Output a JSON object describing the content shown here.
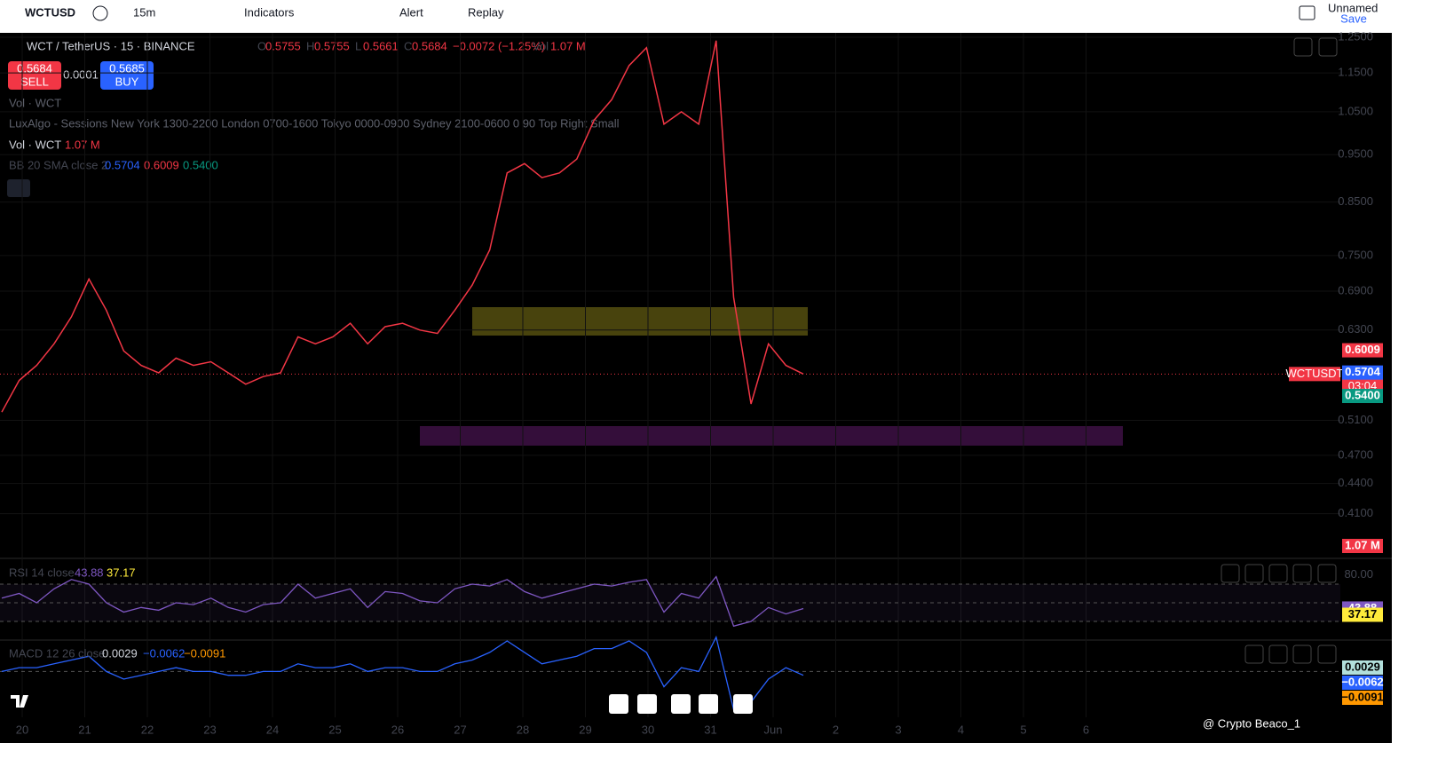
{
  "toolbar": {
    "symbol": "WCTUSD",
    "interval": "15m",
    "indicators": "Indicators",
    "alert": "Alert",
    "replay": "Replay",
    "layout_name": "Unnamed",
    "save": "Save"
  },
  "legend": {
    "pair": "WCT / TetherUS · 15 · BINANCE",
    "ohlc": [
      {
        "key": "O",
        "value": "0.5755"
      },
      {
        "key": "H",
        "value": "0.5755"
      },
      {
        "key": "L",
        "value": "0.5661"
      },
      {
        "key": "C",
        "value": "0.5684"
      }
    ],
    "change": "−0.0072 (−1.25%)",
    "volume_key": "Vol",
    "volume": "1.07 M",
    "sell_price": "0.5684",
    "sell": "SELL",
    "spread": "0.0001",
    "buy_price": "0.5685",
    "buy": "BUY",
    "vol_hidden": "Vol · WCT",
    "luxalgo": "LuxAlgo - Sessions New York 1300-2200 London 0700-1600 Tokyo 0000-0900 Sydney 2100-0600 0 90 Top Right Small",
    "vol_name": "Vol · WCT",
    "vol_value": "1.07 M",
    "bb_name": "BB 20 SMA close 2",
    "bb_values": [
      "0.5704",
      "0.6009",
      "0.5400"
    ],
    "rsi_name": "RSI 14 close",
    "rsi_values": [
      "43.88",
      "37.17"
    ],
    "macd_name": "MACD 12 26 close",
    "macd_values": [
      "0.0029",
      "−0.0062",
      "−0.0091"
    ]
  },
  "price_chart": {
    "type": "line",
    "log_scale": true,
    "color": "#f23645",
    "grid": true,
    "ylim": [
      0.37,
      1.263
    ],
    "yticks": [
      {
        "value": 1.25,
        "label": "1.2500"
      },
      {
        "value": 1.15,
        "label": "1.1500"
      },
      {
        "value": 1.05,
        "label": "1.0500"
      },
      {
        "value": 0.95,
        "label": "0.9500"
      },
      {
        "value": 0.85,
        "label": "0.8500"
      },
      {
        "value": 0.75,
        "label": "0.7500"
      },
      {
        "value": 0.69,
        "label": "0.6900"
      },
      {
        "value": 0.63,
        "label": "0.6300"
      },
      {
        "value": 0.51,
        "label": "0.5100"
      },
      {
        "value": 0.47,
        "label": "0.4700"
      },
      {
        "value": 0.44,
        "label": "0.4400"
      },
      {
        "value": 0.41,
        "label": "0.4100"
      }
    ],
    "x_labels": [
      "20",
      "21",
      "22",
      "23",
      "24",
      "25",
      "26",
      "27",
      "28",
      "29",
      "30",
      "31",
      "Jun",
      "2",
      "3",
      "4",
      "5",
      "6"
    ],
    "close": [
      0.52,
      0.56,
      0.58,
      0.61,
      0.65,
      0.71,
      0.66,
      0.6,
      0.58,
      0.57,
      0.59,
      0.58,
      0.585,
      0.57,
      0.555,
      0.565,
      0.57,
      0.62,
      0.61,
      0.62,
      0.64,
      0.61,
      0.635,
      0.64,
      0.63,
      0.625,
      0.66,
      0.7,
      0.76,
      0.91,
      0.93,
      0.9,
      0.91,
      0.94,
      1.03,
      1.08,
      1.17,
      1.22,
      1.02,
      1.05,
      1.02,
      1.24,
      0.68,
      0.53,
      0.61,
      0.58,
      0.5684
    ],
    "tags": [
      {
        "value": 0.6009,
        "label": "0.6009",
        "color": "#f23645"
      },
      {
        "value": 0.5704,
        "label": "0.5704",
        "color": "#2962ff"
      },
      {
        "value": 0.54,
        "label": "0.5400",
        "color": "#089981"
      }
    ],
    "last": {
      "symbol": "WCTUSDT",
      "value": 0.5684,
      "countdown": "03:04"
    },
    "volume_tag": "1.07 M",
    "watermark": "@ Crypto Beaco_1"
  },
  "rsi_chart": {
    "type": "line",
    "color": "#7e57c2",
    "ylim": [
      11,
      95.7
    ],
    "yticks": [
      {
        "value": 80,
        "label": "80.00"
      }
    ],
    "levels": [
      70,
      50,
      30
    ],
    "values": [
      55,
      60,
      50,
      65,
      75,
      70,
      50,
      40,
      45,
      42,
      50,
      48,
      55,
      45,
      40,
      48,
      50,
      70,
      55,
      60,
      65,
      45,
      62,
      60,
      52,
      50,
      65,
      70,
      68,
      75,
      62,
      55,
      60,
      65,
      70,
      68,
      72,
      75,
      40,
      60,
      55,
      78,
      25,
      30,
      45,
      38,
      43.88
    ],
    "tags": [
      {
        "value": 43.88,
        "color": "#7e57c2"
      },
      {
        "value": 37.17,
        "color": "#ffeb3b"
      }
    ]
  },
  "macd_chart": {
    "type": "line",
    "color": "#2962ff",
    "ylim": [
      -0.012,
      0.008
    ],
    "values": [
      0,
      0.001,
      0.001,
      0.002,
      0.003,
      0.004,
      0,
      -0.002,
      -0.001,
      0,
      0.001,
      0,
      0,
      -0.001,
      -0.001,
      0,
      0,
      0.002,
      0.001,
      0.001,
      0.002,
      0,
      0.001,
      0.001,
      0,
      0,
      0.002,
      0.003,
      0.005,
      0.008,
      0.005,
      0.002,
      0.003,
      0.004,
      0.006,
      0.006,
      0.008,
      0.005,
      -0.004,
      0.001,
      0,
      0.009,
      -0.01,
      -0.008,
      -0.002,
      0.001,
      -0.001
    ]
  }
}
